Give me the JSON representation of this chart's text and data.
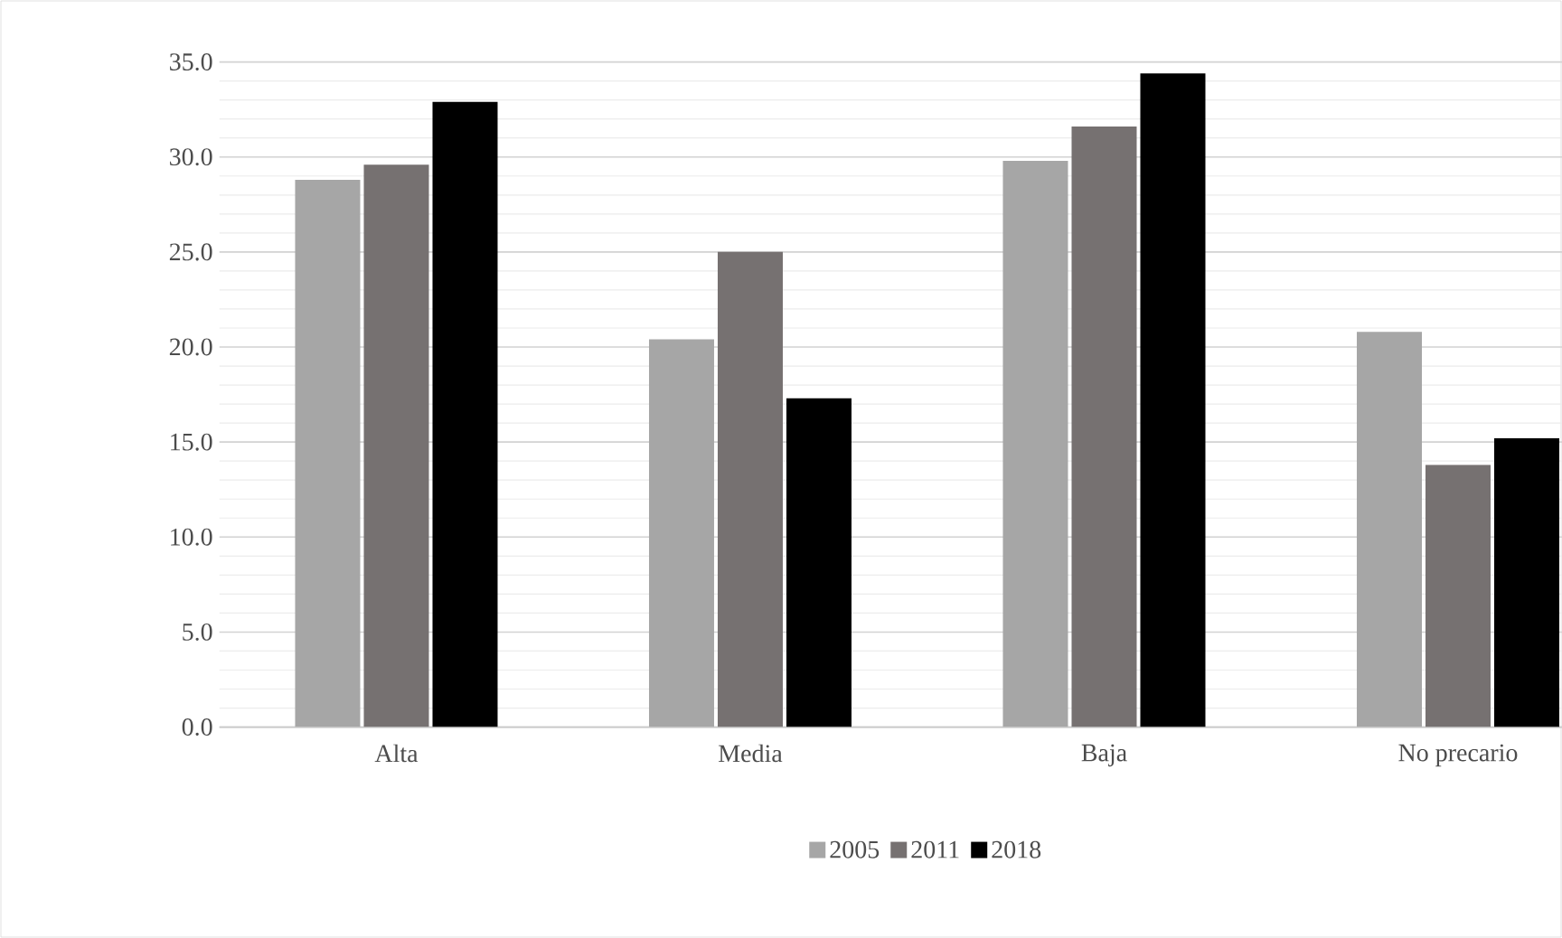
{
  "chart_data": {
    "type": "bar",
    "categories": [
      "Alta",
      "Media",
      "Baja",
      "No precario"
    ],
    "series": [
      {
        "name": "2005",
        "color": "#a6a6a6",
        "values": [
          28.8,
          20.4,
          29.8,
          20.8
        ]
      },
      {
        "name": "2011",
        "color": "#767171",
        "values": [
          29.6,
          25.0,
          31.6,
          13.8
        ]
      },
      {
        "name": "2018",
        "color": "#000000",
        "values": [
          32.9,
          17.3,
          34.4,
          15.2
        ]
      }
    ],
    "ylim": [
      0,
      35
    ],
    "yticks": [
      {
        "value": 0,
        "label": "0.0"
      },
      {
        "value": 5,
        "label": "5.0"
      },
      {
        "value": 10,
        "label": "10.0"
      },
      {
        "value": 15,
        "label": "15.0"
      },
      {
        "value": 20,
        "label": "20.0"
      },
      {
        "value": 25,
        "label": "25.0"
      },
      {
        "value": 30,
        "label": "30.0"
      },
      {
        "value": 35,
        "label": "35.0"
      }
    ],
    "grid": "y",
    "legend": "bottom"
  }
}
